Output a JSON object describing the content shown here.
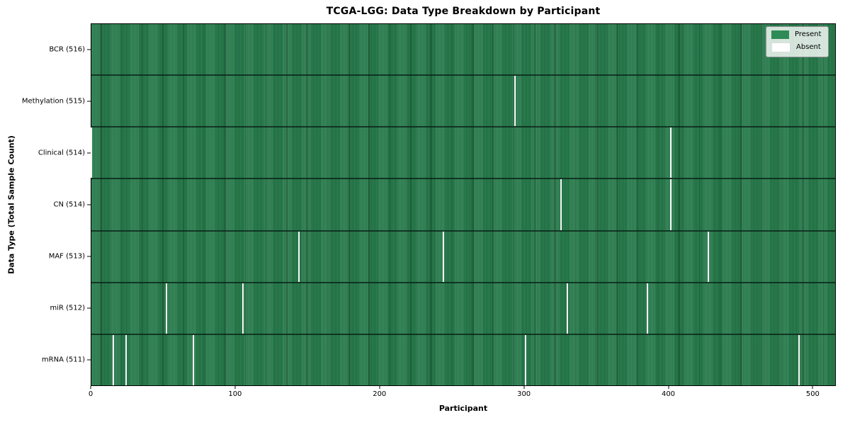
{
  "colors": {
    "present": "#2e8b57",
    "absent": "#f8f8f8",
    "legend_absent_swatch": "#ffffff",
    "spine": "#000000"
  },
  "chart_data": {
    "type": "heatmap",
    "title": "TCGA-LGG: Data Type Breakdown by Participant",
    "xlabel": "Participant",
    "ylabel": "Data Type (Total Sample Count)",
    "xlim": [
      0,
      516
    ],
    "x_ticks": [
      0,
      100,
      200,
      300,
      400,
      500
    ],
    "total_participants": 516,
    "grid": false,
    "legend_position": "upper right",
    "legend": [
      {
        "label": "Present",
        "color": "#2e8b57"
      },
      {
        "label": "Absent",
        "color": "#ffffff"
      }
    ],
    "rows": [
      {
        "label": "BCR (516)",
        "data_type": "BCR",
        "sample_count": 516,
        "absent_participants": []
      },
      {
        "label": "Methylation (515)",
        "data_type": "Methylation",
        "sample_count": 515,
        "absent_participants": [
          294
        ]
      },
      {
        "label": "Clinical (514)",
        "data_type": "Clinical",
        "sample_count": 514,
        "absent_participants": [
          0,
          402
        ]
      },
      {
        "label": "CN (514)",
        "data_type": "CN",
        "sample_count": 514,
        "absent_participants": [
          326,
          402
        ]
      },
      {
        "label": "MAF (513)",
        "data_type": "MAF",
        "sample_count": 513,
        "absent_participants": [
          144,
          244,
          428
        ]
      },
      {
        "label": "miR (512)",
        "data_type": "miR",
        "sample_count": 512,
        "absent_participants": [
          52,
          105,
          330,
          386
        ]
      },
      {
        "label": "mRNA (511)",
        "data_type": "mRNA",
        "sample_count": 511,
        "absent_participants": [
          15,
          24,
          71,
          301,
          491
        ]
      }
    ]
  }
}
